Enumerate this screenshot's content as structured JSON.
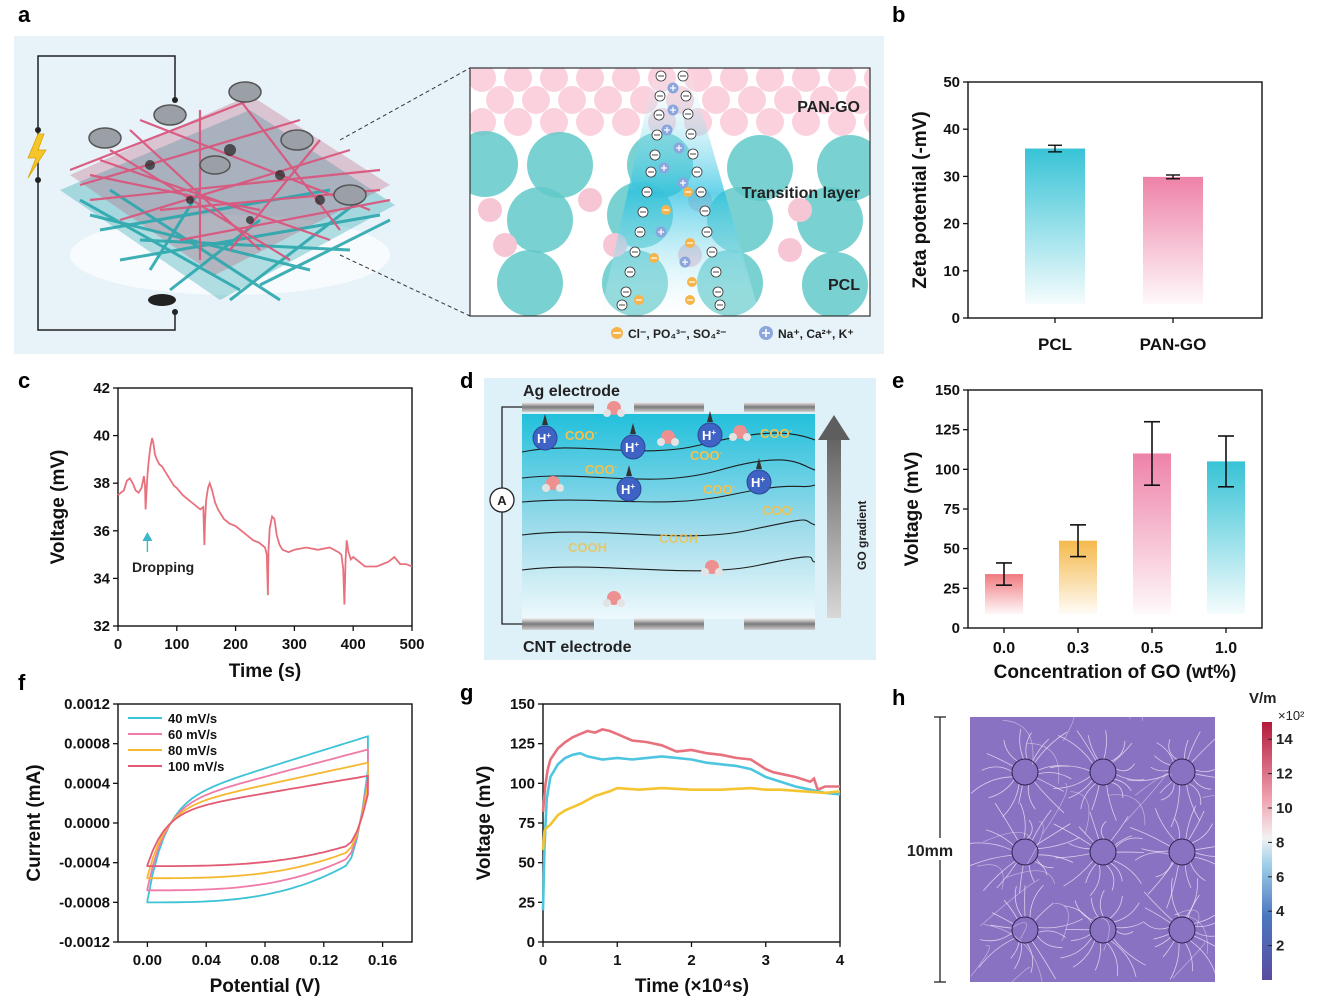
{
  "panel_letters": {
    "a": "a",
    "b": "b",
    "c": "c",
    "d": "d",
    "e": "e",
    "f": "f",
    "g": "g",
    "h": "h"
  },
  "schematic_a": {
    "layer_labels": {
      "top": "PAN-GO",
      "middle": "Transition layer",
      "bottom": "PCL"
    },
    "legend": {
      "anions": "Cl⁻, PO₄³⁻, SO₄²⁻",
      "cations": "Na⁺, Ca²⁺, K⁺"
    },
    "colors": {
      "background": "#e6f2fa",
      "pink": "#f7c6d5",
      "teal": "#5fc8c8",
      "fiber_pink": "#d9577d",
      "fiber_teal": "#2aa7ad"
    }
  },
  "schematic_d": {
    "top_electrode": "Ag electrode",
    "bottom_electrode": "CNT electrode",
    "ammeter": "A",
    "gradient_label": "GO gradient",
    "groups": {
      "coo": "COO",
      "cooh": "COOH",
      "proton": "H"
    },
    "colors": {
      "background": "#def0f8",
      "fluid_top": "#2cc3dc",
      "fluid_bottom": "#eaf7fb",
      "group_text": "#f2c14e"
    }
  },
  "chart_data": [
    {
      "panel": "b",
      "type": "bar",
      "categories": [
        "PCL",
        "PAN-GO"
      ],
      "values": [
        35.9,
        29.9
      ],
      "errors": [
        0.7,
        0.4
      ],
      "ylabel": "Zeta potential (-mV)",
      "ylim": [
        0,
        50
      ],
      "yticks": [
        0,
        10,
        20,
        30,
        40,
        50
      ],
      "colors": [
        "#3cc4d6",
        "#ee82a8"
      ]
    },
    {
      "panel": "c",
      "type": "line",
      "xlabel": "Time (s)",
      "ylabel": "Voltage (mV)",
      "xlim": [
        0,
        500
      ],
      "ylim": [
        32,
        42
      ],
      "xticks": [
        0,
        100,
        200,
        300,
        400,
        500
      ],
      "yticks": [
        32,
        34,
        36,
        38,
        40,
        42
      ],
      "annotation": "Dropping",
      "annotation_x": 50,
      "color": "#e8717e",
      "x": [
        0,
        5,
        10,
        15,
        20,
        25,
        30,
        35,
        40,
        44,
        46,
        47,
        48,
        50,
        52,
        55,
        58,
        60,
        63,
        66,
        70,
        75,
        80,
        85,
        90,
        95,
        100,
        110,
        120,
        130,
        140,
        145,
        147,
        148,
        150,
        153,
        156,
        160,
        165,
        170,
        180,
        190,
        200,
        210,
        220,
        230,
        240,
        250,
        253,
        255,
        256,
        258,
        262,
        266,
        270,
        275,
        280,
        290,
        300,
        320,
        340,
        360,
        375,
        380,
        383,
        385,
        387,
        389,
        392,
        396,
        400,
        420,
        440,
        460,
        470,
        480,
        490,
        500
      ],
      "y": [
        37.5,
        37.6,
        37.7,
        38.1,
        38.2,
        38.0,
        37.7,
        37.6,
        37.8,
        38.3,
        37.9,
        36.9,
        37.4,
        38.3,
        38.9,
        39.5,
        39.9,
        39.7,
        39.2,
        39.0,
        38.8,
        38.7,
        38.5,
        38.3,
        38.1,
        37.9,
        37.8,
        37.5,
        37.3,
        37.1,
        36.9,
        37.0,
        35.4,
        36.4,
        37.3,
        37.8,
        38.0,
        37.7,
        37.2,
        36.9,
        36.5,
        36.3,
        36.2,
        36.0,
        35.8,
        35.6,
        35.5,
        35.3,
        35.0,
        33.3,
        35.2,
        36.1,
        36.6,
        36.5,
        35.8,
        35.4,
        35.2,
        35.1,
        35.2,
        35.3,
        35.2,
        35.3,
        35.1,
        35.0,
        34.4,
        32.9,
        34.8,
        35.6,
        35.1,
        34.8,
        34.9,
        34.5,
        34.5,
        34.7,
        34.9,
        34.6,
        34.6,
        34.5
      ]
    },
    {
      "panel": "e",
      "type": "bar",
      "categories": [
        "0.0",
        "0.3",
        "0.5",
        "1.0"
      ],
      "values": [
        34,
        55,
        110,
        105
      ],
      "errors": [
        7,
        10,
        20,
        16
      ],
      "xlabel": "Concentration of GO (wt%)",
      "ylabel": "Voltage (mV)",
      "ylim": [
        0,
        150
      ],
      "yticks": [
        0,
        25,
        50,
        75,
        100,
        125,
        150
      ],
      "colors": [
        "#f07a80",
        "#f5b94d",
        "#ee82a8",
        "#3cc4d6"
      ]
    },
    {
      "panel": "f",
      "type": "line",
      "xlabel": "Potential (V)",
      "ylabel": "Current (mA)",
      "xlim": [
        -0.02,
        0.18
      ],
      "ylim": [
        -0.0012,
        0.0012
      ],
      "xticks": [
        "0.00",
        "0.04",
        "0.08",
        "0.12",
        "0.16"
      ],
      "yticks": [
        "-0.0012",
        "-0.0008",
        "-0.0004",
        "0.0000",
        "0.0004",
        "0.0008",
        "0.0012"
      ],
      "series": [
        {
          "name": "40 mV/s",
          "color": "#3cc4d6",
          "amp": 0.00092
        },
        {
          "name": "60 mV/s",
          "color": "#f07aa8",
          "amp": 0.00078
        },
        {
          "name": "80 mV/s",
          "color": "#f5b830",
          "amp": 0.00064
        },
        {
          "name": "100 mV/s",
          "color": "#e35a73",
          "amp": 0.0005
        }
      ]
    },
    {
      "panel": "g",
      "type": "line",
      "xlabel": "Time (×10⁴s)",
      "ylabel": "Voltage (mV)",
      "xlim": [
        0,
        4
      ],
      "ylim": [
        0,
        150
      ],
      "xticks": [
        0,
        1,
        2,
        3,
        4
      ],
      "yticks": [
        0,
        25,
        50,
        75,
        100,
        125,
        150
      ],
      "series": [
        {
          "name": "pink",
          "color": "#e8717e",
          "x": [
            0,
            0.03,
            0.06,
            0.1,
            0.2,
            0.3,
            0.4,
            0.5,
            0.6,
            0.7,
            0.8,
            0.9,
            1.0,
            1.1,
            1.2,
            1.4,
            1.6,
            1.8,
            2.0,
            2.2,
            2.4,
            2.6,
            2.8,
            2.9,
            3.0,
            3.1,
            3.2,
            3.4,
            3.6,
            3.65,
            3.7,
            3.8,
            4.0
          ],
          "y": [
            82,
            98,
            108,
            115,
            122,
            126,
            129,
            131,
            133,
            132,
            134,
            133,
            131,
            129,
            127,
            126,
            124,
            120,
            121,
            119,
            118,
            116,
            115,
            112,
            109,
            107,
            106,
            104,
            101,
            103,
            96,
            98,
            98
          ]
        },
        {
          "name": "cyan",
          "color": "#4ec6e0",
          "x": [
            0,
            0.02,
            0.05,
            0.1,
            0.2,
            0.3,
            0.4,
            0.5,
            0.6,
            0.8,
            1.0,
            1.2,
            1.4,
            1.6,
            1.8,
            2.0,
            2.2,
            2.4,
            2.6,
            2.8,
            3.0,
            3.2,
            3.4,
            3.6,
            3.8,
            4.0
          ],
          "y": [
            20,
            60,
            90,
            104,
            112,
            116,
            118,
            119,
            117,
            115,
            116,
            115,
            116,
            117,
            116,
            115,
            113,
            112,
            111,
            109,
            104,
            101,
            98,
            96,
            94,
            93
          ]
        },
        {
          "name": "yellow",
          "color": "#f5c431",
          "x": [
            0,
            0.02,
            0.05,
            0.1,
            0.2,
            0.3,
            0.5,
            0.7,
            0.9,
            1.0,
            1.3,
            1.6,
            2.0,
            2.4,
            2.8,
            3.0,
            3.2,
            3.5,
            3.8,
            4.0
          ],
          "y": [
            58,
            70,
            72,
            74,
            80,
            83,
            87,
            92,
            95,
            97,
            96,
            97,
            96,
            96,
            97,
            96,
            96,
            95,
            94,
            95
          ]
        }
      ]
    },
    {
      "panel": "h",
      "type": "heatmap",
      "colorbar_unit": "V/m",
      "colorbar_exponent": "×10²",
      "colorbar_ticks": [
        2,
        4,
        6,
        8,
        10,
        12,
        14
      ],
      "colorbar_range": [
        0,
        15
      ],
      "scale_label": "10mm",
      "grid": [
        3,
        3
      ],
      "colors": {
        "field": "#8a72c2",
        "low": "#6a55a8",
        "mid": "#e9eef3",
        "high": "#c0233f"
      }
    }
  ]
}
